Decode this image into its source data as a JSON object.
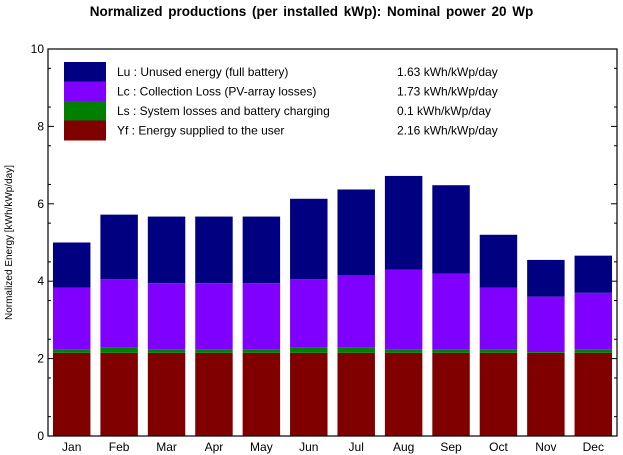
{
  "chart_data": {
    "type": "bar",
    "stacked": true,
    "title": "Normalized productions (per installed kWp):   Nominal power 20 Wp",
    "ylabel": "Normalized   Energy   [kWh/kWp/day]",
    "xlabel": "",
    "ylim": [
      0,
      10
    ],
    "yticks": [
      0,
      2,
      4,
      6,
      8,
      10
    ],
    "grid": false,
    "legend_position": "top-left",
    "categories": [
      "Jan",
      "Feb",
      "Mar",
      "Apr",
      "May",
      "Jun",
      "Jul",
      "Aug",
      "Sep",
      "Oct",
      "Nov",
      "Dec"
    ],
    "series": [
      {
        "key": "Yf",
        "legend": "Yf : Energy supplied to the user",
        "summary": "2.16 kWh/kWp/day",
        "color": "#800000",
        "values": [
          2.15,
          2.15,
          2.15,
          2.15,
          2.15,
          2.15,
          2.15,
          2.15,
          2.15,
          2.15,
          2.15,
          2.15
        ]
      },
      {
        "key": "Ls",
        "legend": "Ls : System losses and battery charging",
        "summary": "0.1 kWh/kWp/day",
        "color": "#008000",
        "values": [
          0.08,
          0.14,
          0.08,
          0.08,
          0.08,
          0.14,
          0.14,
          0.08,
          0.08,
          0.08,
          0.02,
          0.08
        ]
      },
      {
        "key": "Lc",
        "legend": "Lc : Collection Loss (PV-array losses)",
        "summary": "1.73 kWh/kWp/day",
        "color": "#8000ff",
        "values": [
          1.6,
          1.76,
          1.72,
          1.72,
          1.72,
          1.76,
          1.86,
          2.07,
          1.97,
          1.6,
          1.43,
          1.47
        ]
      },
      {
        "key": "Lu",
        "legend": "Lu : Unused energy (full battery)",
        "summary": "1.63 kWh/kWp/day",
        "color": "#000080",
        "values": [
          1.17,
          1.67,
          1.72,
          1.72,
          1.72,
          2.08,
          2.22,
          2.42,
          2.28,
          1.37,
          0.95,
          0.96
        ]
      }
    ],
    "legend_order": [
      "Lu",
      "Lc",
      "Ls",
      "Yf"
    ]
  }
}
